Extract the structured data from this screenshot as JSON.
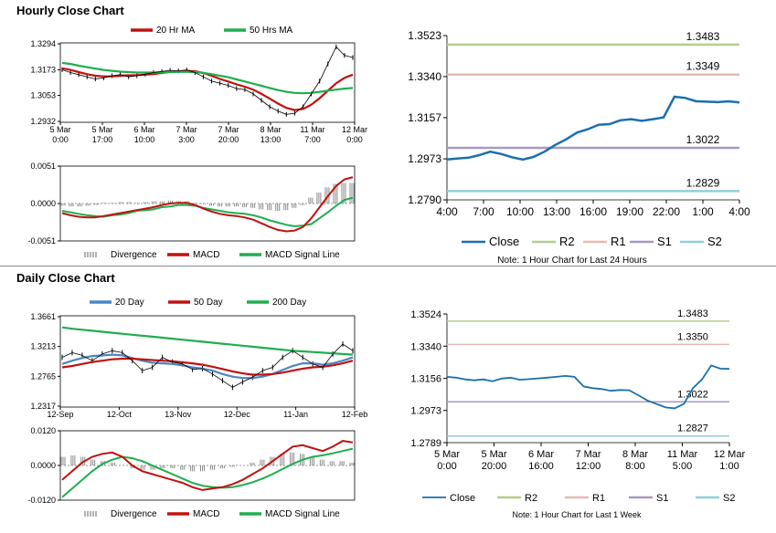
{
  "sections": {
    "hourly_title": "Hourly Close Chart",
    "daily_title": "Daily Close Chart"
  },
  "colors": {
    "red": "#c0120f",
    "green": "#1fae4e",
    "blue": "#4a86c5",
    "gray": "#7f7f7f",
    "close_blue": "#1a6fae",
    "r2": "#b7cc8b",
    "r1": "#e7b9b4",
    "s1": "#a899c5",
    "s2": "#8fd0da"
  },
  "chart_data": [
    {
      "id": "hourly-price",
      "type": "line",
      "title": "Hourly Close Chart",
      "legend": [
        "20 Hr MA",
        "50 Hrs MA"
      ],
      "y_ticks": [
        "1.3294",
        "1.3173",
        "1.3053",
        "1.2932"
      ],
      "ylim": [
        1.2932,
        1.3294
      ],
      "x_ticks": [
        [
          "5 Mar",
          "0:00"
        ],
        [
          "5 Mar",
          "17:00"
        ],
        [
          "6 Mar",
          "10:00"
        ],
        [
          "7 Mar",
          "3:00"
        ],
        [
          "7 Mar",
          "20:00"
        ],
        [
          "8 Mar",
          "13:00"
        ],
        [
          "11 Mar",
          "7:00"
        ],
        [
          "12 Mar",
          "0:00"
        ]
      ],
      "series": [
        {
          "name": "Price",
          "values": [
            1.3173,
            1.316,
            1.315,
            1.314,
            1.313,
            1.3135,
            1.3145,
            1.315,
            1.314,
            1.3145,
            1.3152,
            1.316,
            1.3165,
            1.317,
            1.3168,
            1.3172,
            1.316,
            1.314,
            1.312,
            1.311,
            1.31,
            1.3085,
            1.308,
            1.306,
            1.303,
            1.3,
            1.298,
            1.2965,
            1.297,
            1.3,
            1.306,
            1.312,
            1.32,
            1.328,
            1.324,
            1.323
          ]
        },
        {
          "name": "20 Hr MA",
          "values": [
            1.318,
            1.3172,
            1.3162,
            1.3152,
            1.3145,
            1.3142,
            1.3142,
            1.3145,
            1.3147,
            1.3148,
            1.315,
            1.3153,
            1.3158,
            1.3163,
            1.3165,
            1.3168,
            1.3166,
            1.3158,
            1.3145,
            1.313,
            1.3118,
            1.3105,
            1.3094,
            1.308,
            1.306,
            1.3038,
            1.3015,
            1.2995,
            1.2985,
            1.299,
            1.301,
            1.304,
            1.3075,
            1.311,
            1.3135,
            1.315
          ]
        },
        {
          "name": "50 Hrs MA",
          "values": [
            1.3205,
            1.32,
            1.3192,
            1.3185,
            1.3178,
            1.3172,
            1.3168,
            1.3164,
            1.3162,
            1.316,
            1.316,
            1.316,
            1.3161,
            1.3162,
            1.3163,
            1.3163,
            1.3162,
            1.3158,
            1.3152,
            1.3145,
            1.3138,
            1.3128,
            1.3118,
            1.3108,
            1.3098,
            1.3088,
            1.3078,
            1.307,
            1.3065,
            1.3063,
            1.3065,
            1.307,
            1.3075,
            1.308,
            1.3085,
            1.3088
          ]
        }
      ]
    },
    {
      "id": "hourly-macd",
      "type": "line",
      "legend": [
        "Divergence",
        "MACD",
        "MACD Signal Line"
      ],
      "y_ticks": [
        "0.0051",
        "0.0000",
        "-0.0051"
      ],
      "ylim": [
        -0.0051,
        0.0051
      ],
      "series": [
        {
          "name": "Divergence",
          "values": [
            -0.0003,
            -0.0004,
            -0.0004,
            -0.0003,
            -0.0002,
            0.0001,
            0.0001,
            0.0002,
            0.0002,
            0.0001,
            0.0002,
            0.0003,
            0.0003,
            0.0004,
            0.0003,
            0.0003,
            0.0001,
            -0.0001,
            -0.0003,
            -0.0004,
            -0.0004,
            -0.0004,
            -0.0005,
            -0.0006,
            -0.0008,
            -0.0009,
            -0.001,
            -0.0009,
            -0.0006,
            -0.0002,
            0.0008,
            0.0015,
            0.0022,
            0.0027,
            0.0028,
            0.0028
          ]
        },
        {
          "name": "MACD",
          "values": [
            -0.0013,
            -0.0016,
            -0.0018,
            -0.0019,
            -0.0019,
            -0.0017,
            -0.0015,
            -0.0013,
            -0.0011,
            -0.0009,
            -0.0007,
            -0.0005,
            -0.0002,
            0.0,
            0.0001,
            0.0001,
            -0.0002,
            -0.0007,
            -0.0011,
            -0.0014,
            -0.0016,
            -0.0017,
            -0.0019,
            -0.0022,
            -0.0027,
            -0.0032,
            -0.0036,
            -0.0038,
            -0.0037,
            -0.0032,
            -0.002,
            -0.0005,
            0.001,
            0.0024,
            0.0033,
            0.0036
          ]
        },
        {
          "name": "MACD Signal Line",
          "values": [
            -0.001,
            -0.0012,
            -0.0014,
            -0.0016,
            -0.0017,
            -0.0018,
            -0.0016,
            -0.0015,
            -0.0013,
            -0.001,
            -0.0009,
            -0.0008,
            -0.0005,
            -0.0004,
            -0.0002,
            -0.0002,
            -0.0003,
            -0.0006,
            -0.0008,
            -0.001,
            -0.0012,
            -0.0013,
            -0.0014,
            -0.0016,
            -0.0019,
            -0.0023,
            -0.0026,
            -0.0029,
            -0.0031,
            -0.003,
            -0.0028,
            -0.002,
            -0.0012,
            -0.0003,
            0.0005,
            0.0008
          ]
        }
      ]
    },
    {
      "id": "hourly-levels",
      "type": "line",
      "note": "Note: 1 Hour Chart for Last 24 Hours",
      "y_ticks": [
        "1.3523",
        "1.3340",
        "1.3157",
        "1.2973",
        "1.2790"
      ],
      "ylim": [
        1.279,
        1.3523
      ],
      "x_ticks": [
        "4:00",
        "7:00",
        "10:00",
        "13:00",
        "16:00",
        "19:00",
        "22:00",
        "1:00",
        "4:00"
      ],
      "legend": [
        "Close",
        "R2",
        "R1",
        "S1",
        "S2"
      ],
      "levels": [
        {
          "name": "R2",
          "value": 1.3483,
          "label": "1.3483"
        },
        {
          "name": "R1",
          "value": 1.3349,
          "label": "1.3349"
        },
        {
          "name": "S1",
          "value": 1.3022,
          "label": "1.3022"
        },
        {
          "name": "S2",
          "value": 1.2829,
          "label": "1.2829"
        }
      ],
      "series": [
        {
          "name": "Close",
          "values": [
            1.297,
            1.2975,
            1.2978,
            1.299,
            1.3005,
            1.2995,
            1.298,
            1.297,
            1.2982,
            1.3005,
            1.3035,
            1.306,
            1.309,
            1.3105,
            1.3125,
            1.3128,
            1.3145,
            1.315,
            1.3143,
            1.315,
            1.3158,
            1.325,
            1.3245,
            1.323,
            1.3228,
            1.3226,
            1.323,
            1.3225
          ]
        }
      ]
    },
    {
      "id": "daily-price",
      "type": "line",
      "title": "Daily Close Chart",
      "legend": [
        "20 Day",
        "50 Day",
        "200 Day"
      ],
      "y_ticks": [
        "1.3661",
        "1.3213",
        "1.2765",
        "1.2317"
      ],
      "ylim": [
        1.2317,
        1.3661
      ],
      "x_ticks": [
        "12-Sep",
        "12-Oct",
        "13-Nov",
        "12-Dec",
        "11-Jan",
        "12-Feb"
      ],
      "series": [
        {
          "name": "Price",
          "values": [
            1.305,
            1.312,
            1.308,
            1.3,
            1.31,
            1.315,
            1.312,
            1.3,
            1.285,
            1.29,
            1.305,
            1.298,
            1.295,
            1.287,
            1.288,
            1.28,
            1.27,
            1.26,
            1.268,
            1.275,
            1.285,
            1.29,
            1.305,
            1.315,
            1.305,
            1.295,
            1.29,
            1.31,
            1.325,
            1.315
          ]
        },
        {
          "name": "20 Day",
          "values": [
            1.295,
            1.3,
            1.304,
            1.307,
            1.308,
            1.309,
            1.308,
            1.304,
            1.3,
            1.297,
            1.296,
            1.295,
            1.293,
            1.29,
            1.288,
            1.285,
            1.28,
            1.276,
            1.274,
            1.274,
            1.276,
            1.28,
            1.286,
            1.292,
            1.296,
            1.296,
            1.294,
            1.296,
            1.3,
            1.305
          ]
        },
        {
          "name": "50 Day",
          "values": [
            1.29,
            1.292,
            1.295,
            1.298,
            1.3,
            1.302,
            1.303,
            1.303,
            1.302,
            1.301,
            1.3,
            1.299,
            1.2975,
            1.296,
            1.294,
            1.291,
            1.2875,
            1.284,
            1.281,
            1.279,
            1.279,
            1.28,
            1.282,
            1.285,
            1.288,
            1.29,
            1.291,
            1.293,
            1.296,
            1.3
          ]
        },
        {
          "name": "200 Day",
          "values": [
            1.35,
            1.348,
            1.3465,
            1.345,
            1.3435,
            1.342,
            1.3405,
            1.339,
            1.3375,
            1.336,
            1.3345,
            1.333,
            1.3315,
            1.33,
            1.3285,
            1.327,
            1.3255,
            1.324,
            1.3225,
            1.321,
            1.3195,
            1.318,
            1.3165,
            1.315,
            1.314,
            1.313,
            1.312,
            1.311,
            1.31,
            1.309
          ]
        }
      ]
    },
    {
      "id": "daily-macd",
      "type": "line",
      "legend": [
        "Divergence",
        "MACD",
        "MACD Signal Line"
      ],
      "y_ticks": [
        "0.0120",
        "0.0000",
        "-0.0120"
      ],
      "ylim": [
        -0.012,
        0.012
      ],
      "series": [
        {
          "name": "Divergence",
          "values": [
            0.003,
            0.0035,
            0.003,
            0.002,
            0.0015,
            0.001,
            0.0,
            -0.001,
            -0.0015,
            -0.0015,
            -0.001,
            -0.001,
            -0.0015,
            -0.002,
            -0.002,
            -0.0015,
            -0.001,
            -0.0005,
            0.0,
            0.001,
            0.002,
            0.003,
            0.004,
            0.0045,
            0.004,
            0.003,
            0.002,
            0.0015,
            0.0015,
            0.001
          ]
        },
        {
          "name": "MACD",
          "values": [
            -0.005,
            -0.002,
            0.001,
            0.003,
            0.004,
            0.0045,
            0.003,
            0.0,
            -0.002,
            -0.003,
            -0.004,
            -0.005,
            -0.006,
            -0.0075,
            -0.0085,
            -0.008,
            -0.0075,
            -0.0065,
            -0.005,
            -0.003,
            -0.001,
            0.0015,
            0.004,
            0.0065,
            0.007,
            0.006,
            0.005,
            0.0065,
            0.0085,
            0.008
          ]
        },
        {
          "name": "MACD Signal Line",
          "values": [
            -0.011,
            -0.008,
            -0.005,
            -0.002,
            0.0005,
            0.002,
            0.003,
            0.0025,
            0.0015,
            0.0,
            -0.0015,
            -0.003,
            -0.0045,
            -0.006,
            -0.007,
            -0.0075,
            -0.0077,
            -0.0075,
            -0.0068,
            -0.0058,
            -0.0045,
            -0.003,
            -0.0012,
            0.0005,
            0.002,
            0.003,
            0.0035,
            0.0042,
            0.005,
            0.0058
          ]
        }
      ]
    },
    {
      "id": "daily-levels",
      "type": "line",
      "note": "Note: 1 Hour Chart for Last 1 Week",
      "y_ticks": [
        "1.3524",
        "1.3340",
        "1.3156",
        "1.2973",
        "1.2789"
      ],
      "ylim": [
        1.2789,
        1.3524
      ],
      "x_ticks": [
        [
          "5 Mar",
          "0:00"
        ],
        [
          "5 Mar",
          "20:00"
        ],
        [
          "6 Mar",
          "16:00"
        ],
        [
          "7 Mar",
          "12:00"
        ],
        [
          "8 Mar",
          "8:00"
        ],
        [
          "11 Mar",
          "5:00"
        ],
        [
          "12 Mar",
          "1:00"
        ]
      ],
      "legend": [
        "Close",
        "R2",
        "R1",
        "S1",
        "S2"
      ],
      "levels": [
        {
          "name": "R2",
          "value": 1.3483,
          "label": "1.3483"
        },
        {
          "name": "R1",
          "value": 1.335,
          "label": "1.3350"
        },
        {
          "name": "S1",
          "value": 1.3022,
          "label": "1.3022"
        },
        {
          "name": "S2",
          "value": 1.2827,
          "label": "1.2827"
        }
      ],
      "series": [
        {
          "name": "Close",
          "values": [
            1.3165,
            1.316,
            1.315,
            1.3145,
            1.315,
            1.314,
            1.3155,
            1.316,
            1.3148,
            1.3152,
            1.3156,
            1.316,
            1.3165,
            1.317,
            1.3165,
            1.311,
            1.31,
            1.3095,
            1.3085,
            1.309,
            1.3088,
            1.306,
            1.303,
            1.301,
            1.299,
            1.2985,
            1.301,
            1.31,
            1.315,
            1.323,
            1.3212,
            1.321
          ]
        }
      ]
    }
  ]
}
